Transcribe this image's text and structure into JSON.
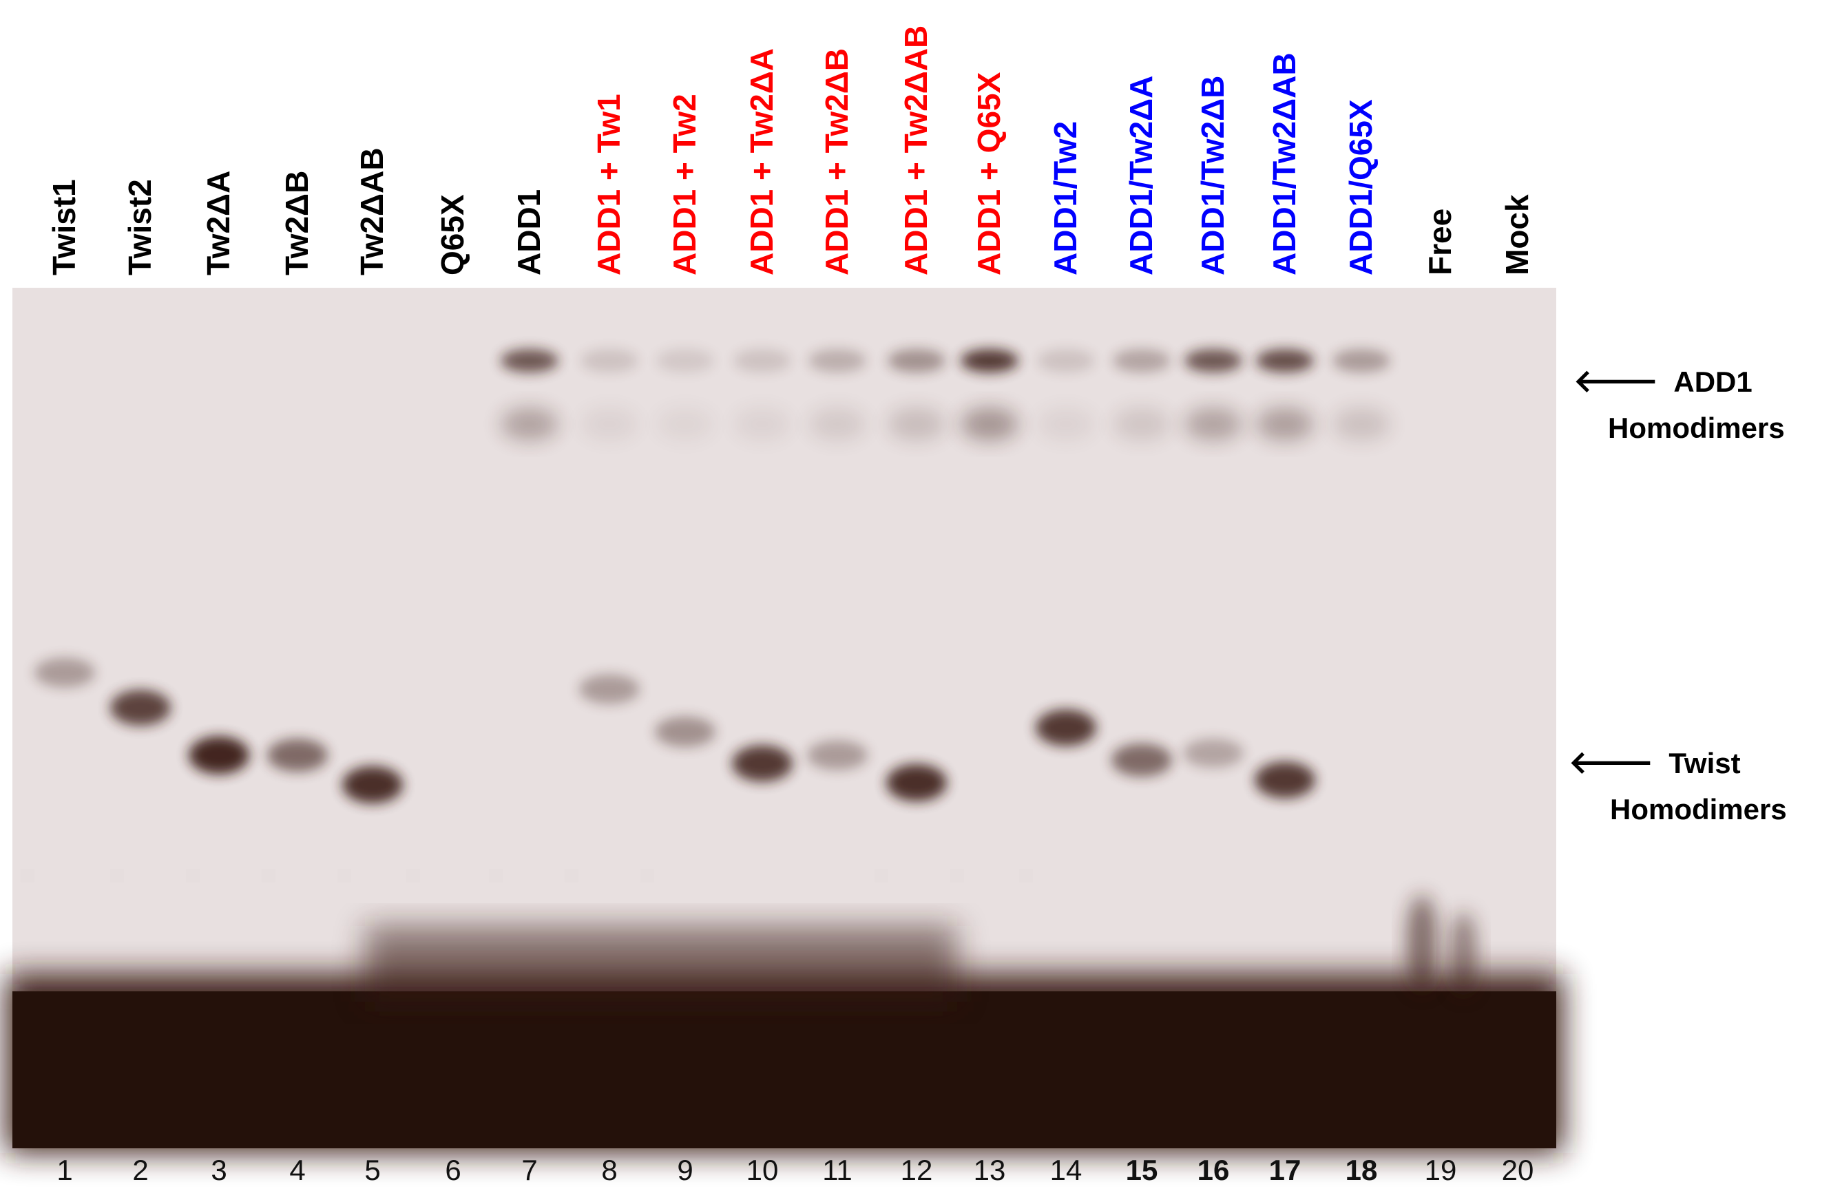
{
  "colors": {
    "gel_background": "#e8e0e0",
    "band": "#3a1f12",
    "label_black": "#000000",
    "label_red": "#ff0000",
    "label_blue": "#0000ff"
  },
  "lanes": [
    {
      "label": "Twist1",
      "number": "1",
      "label_color": "black",
      "number_bold": false
    },
    {
      "label": "Twist2",
      "number": "2",
      "label_color": "black",
      "number_bold": false
    },
    {
      "label": "Tw2ΔA",
      "number": "3",
      "label_color": "black",
      "number_bold": false
    },
    {
      "label": "Tw2ΔB",
      "number": "4",
      "label_color": "black",
      "number_bold": false
    },
    {
      "label": "Tw2ΔAB",
      "number": "5",
      "label_color": "black",
      "number_bold": false
    },
    {
      "label": "Q65X",
      "number": "6",
      "label_color": "black",
      "number_bold": false
    },
    {
      "label": "ADD1",
      "number": "7",
      "label_color": "black",
      "number_bold": false
    },
    {
      "label": "ADD1 + Tw1",
      "number": "8",
      "label_color": "red",
      "number_bold": false
    },
    {
      "label": "ADD1 + Tw2",
      "number": "9",
      "label_color": "red",
      "number_bold": false
    },
    {
      "label": "ADD1 + Tw2ΔA",
      "number": "10",
      "label_color": "red",
      "number_bold": false
    },
    {
      "label": "ADD1 + Tw2ΔB",
      "number": "11",
      "label_color": "red",
      "number_bold": false
    },
    {
      "label": "ADD1 + Tw2ΔAB",
      "number": "12",
      "label_color": "red",
      "number_bold": false
    },
    {
      "label": "ADD1 + Q65X",
      "number": "13",
      "label_color": "red",
      "number_bold": false
    },
    {
      "label": "ADD1/Tw2",
      "number": "14",
      "label_color": "blue",
      "number_bold": false
    },
    {
      "label": "ADD1/Tw2ΔA",
      "number": "15",
      "label_color": "blue",
      "number_bold": true
    },
    {
      "label": "ADD1/Tw2ΔB",
      "number": "16",
      "label_color": "blue",
      "number_bold": true
    },
    {
      "label": "ADD1/Tw2ΔAB",
      "number": "17",
      "label_color": "blue",
      "number_bold": true
    },
    {
      "label": "ADD1/Q65X",
      "number": "18",
      "label_color": "blue",
      "number_bold": true
    },
    {
      "label": "Free",
      "number": "19",
      "label_color": "black",
      "number_bold": false
    },
    {
      "label": "Mock",
      "number": "20",
      "label_color": "black",
      "number_bold": false
    }
  ],
  "annotations": {
    "add1": {
      "arrow": "🡐",
      "line1": "ADD1",
      "line2": "Homodimers"
    },
    "twist": {
      "arrow": "🡐",
      "line1": "Twist",
      "line2": "Homodimers"
    }
  },
  "bands": {
    "twist_homodimer": [
      {
        "lane": 1,
        "intensity": 0.35
      },
      {
        "lane": 2,
        "intensity": 0.8
      },
      {
        "lane": 3,
        "intensity": 0.95
      },
      {
        "lane": 4,
        "intensity": 0.6
      },
      {
        "lane": 5,
        "intensity": 0.9
      },
      {
        "lane": 8,
        "intensity": 0.35
      },
      {
        "lane": 9,
        "intensity": 0.4
      },
      {
        "lane": 10,
        "intensity": 0.85
      },
      {
        "lane": 11,
        "intensity": 0.35
      },
      {
        "lane": 12,
        "intensity": 0.9
      },
      {
        "lane": 14,
        "intensity": 0.85
      },
      {
        "lane": 15,
        "intensity": 0.6
      },
      {
        "lane": 16,
        "intensity": 0.3
      },
      {
        "lane": 17,
        "intensity": 0.85
      }
    ],
    "add1_homodimer": [
      {
        "lane": 7,
        "intensity": 0.7
      },
      {
        "lane": 8,
        "intensity": 0.15
      },
      {
        "lane": 9,
        "intensity": 0.12
      },
      {
        "lane": 10,
        "intensity": 0.15
      },
      {
        "lane": 11,
        "intensity": 0.25
      },
      {
        "lane": 12,
        "intensity": 0.4
      },
      {
        "lane": 13,
        "intensity": 0.85
      },
      {
        "lane": 14,
        "intensity": 0.15
      },
      {
        "lane": 15,
        "intensity": 0.3
      },
      {
        "lane": 16,
        "intensity": 0.7
      },
      {
        "lane": 17,
        "intensity": 0.75
      },
      {
        "lane": 18,
        "intensity": 0.35
      }
    ]
  }
}
